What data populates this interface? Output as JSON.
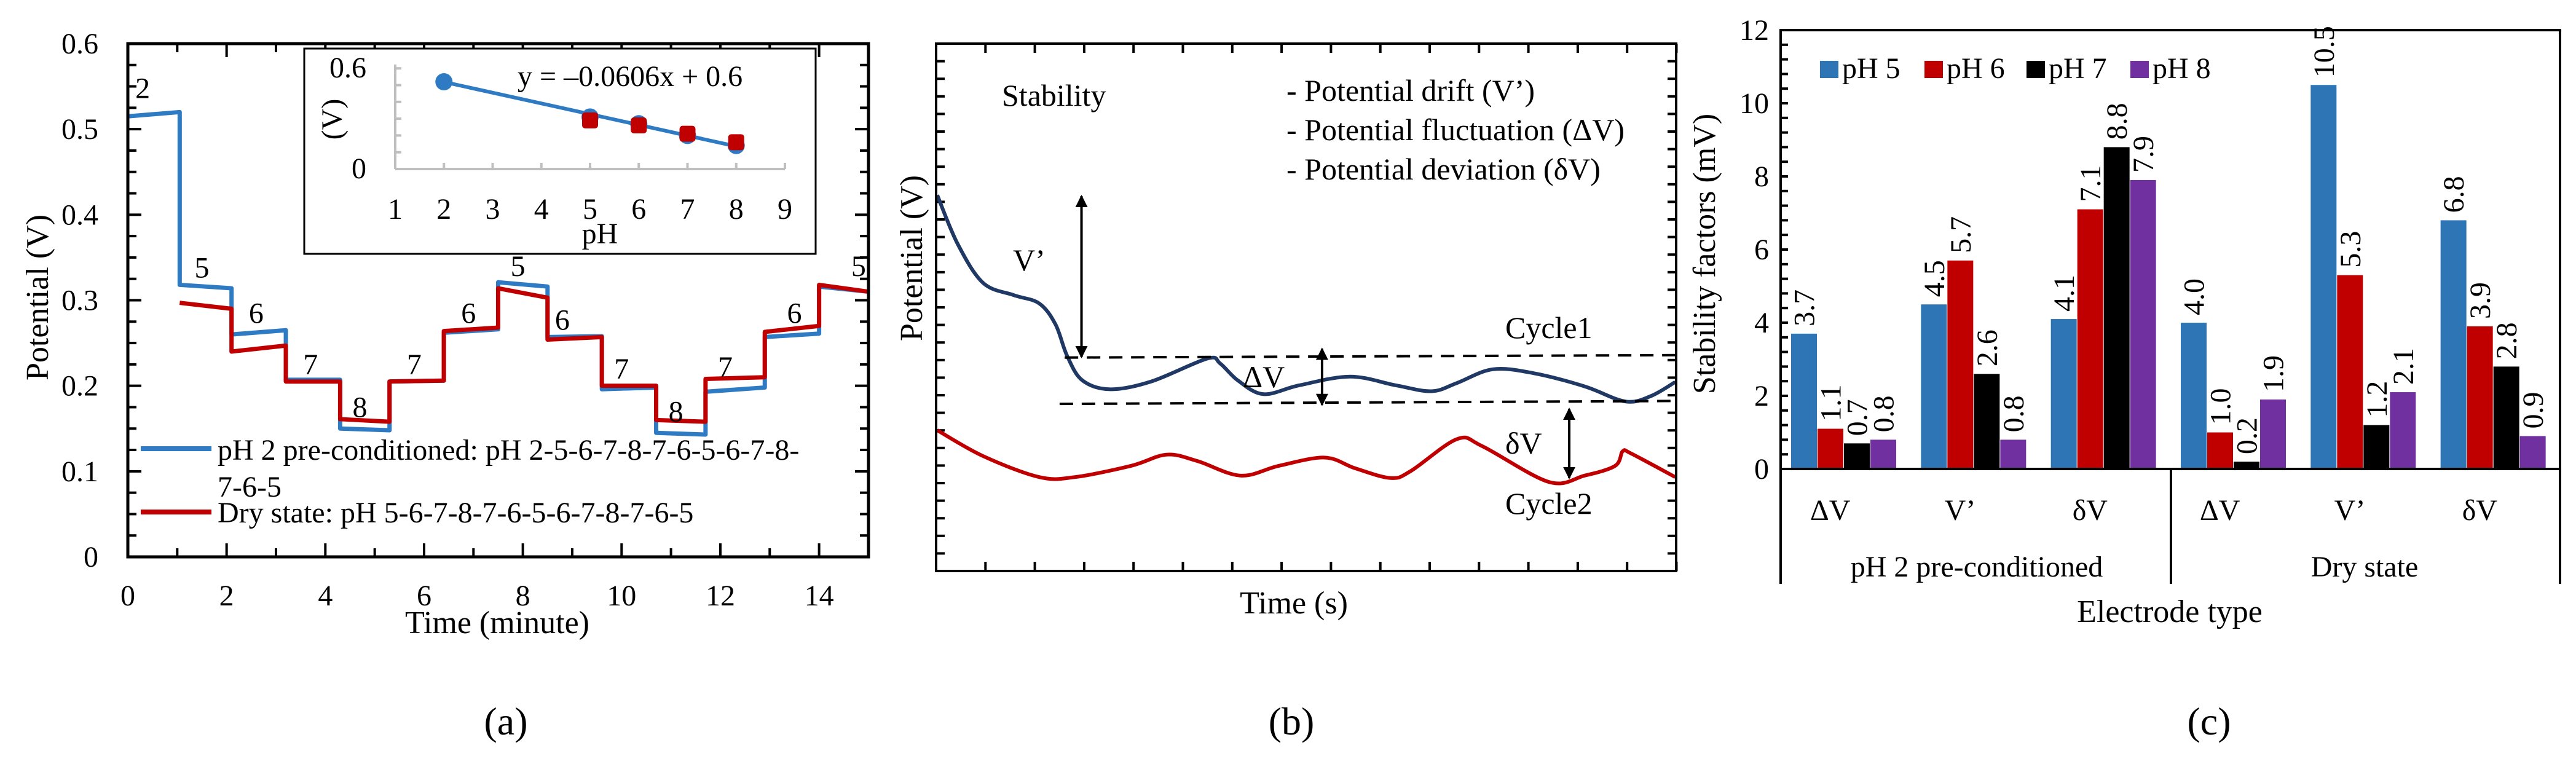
{
  "colors": {
    "blue_a": "#2E7BC4",
    "red": "#C00000",
    "navy": "#1F3864",
    "pH5": "#2E75B6",
    "pH6": "#C00000",
    "pH7": "#000000",
    "pH8": "#7030A0"
  },
  "panels": {
    "a": "(a)",
    "b": "(b)",
    "c": "(c)"
  },
  "chart_data": [
    {
      "type": "line",
      "panel": "a",
      "xlabel": "Time (minute)",
      "ylabel": "Potential (V)",
      "xlim": [
        0,
        15
      ],
      "ylim": [
        0,
        0.6
      ],
      "xticks": [
        "0",
        "2",
        "4",
        "6",
        "8",
        "10",
        "12",
        "14"
      ],
      "yticks": [
        "0",
        "0.1",
        "0.2",
        "0.3",
        "0.4",
        "0.5",
        "0.6"
      ],
      "legend": [
        "pH 2 pre-conditioned: pH 2-5-6-7-8-7-6-5-6-7-8-",
        "7-6-5",
        "Dry state: pH 5-6-7-8-7-6-5-6-7-8-7-6-5"
      ],
      "legend_placement": "bottom-left",
      "series": [
        {
          "name": "pH 2 pre-conditioned",
          "segments_t0_t1_v0_v1": [
            [
              0,
              1.05,
              0.515,
              0.52
            ],
            [
              1.05,
              2.1,
              0.318,
              0.314
            ],
            [
              2.1,
              3.2,
              0.26,
              0.265
            ],
            [
              3.2,
              4.3,
              0.207,
              0.207
            ],
            [
              4.3,
              5.3,
              0.15,
              0.148
            ],
            [
              5.3,
              6.4,
              0.205,
              0.206
            ],
            [
              6.4,
              7.5,
              0.262,
              0.266
            ],
            [
              7.5,
              8.5,
              0.321,
              0.316
            ],
            [
              8.5,
              9.6,
              0.257,
              0.258
            ],
            [
              9.6,
              10.7,
              0.196,
              0.198
            ],
            [
              10.7,
              11.7,
              0.145,
              0.143
            ],
            [
              11.7,
              12.9,
              0.193,
              0.198
            ],
            [
              12.9,
              14,
              0.257,
              0.261
            ],
            [
              14,
              15,
              0.316,
              0.31
            ]
          ]
        },
        {
          "name": "Dry state",
          "segments_t0_t1_v0_v1": [
            [
              1.05,
              2.1,
              0.297,
              0.29
            ],
            [
              2.1,
              3.2,
              0.24,
              0.247
            ],
            [
              3.2,
              4.3,
              0.205,
              0.205
            ],
            [
              4.3,
              5.3,
              0.161,
              0.158
            ],
            [
              5.3,
              6.4,
              0.205,
              0.206
            ],
            [
              6.4,
              7.5,
              0.264,
              0.268
            ],
            [
              7.5,
              8.5,
              0.314,
              0.303
            ],
            [
              8.5,
              9.6,
              0.254,
              0.257
            ],
            [
              9.6,
              10.7,
              0.2,
              0.2
            ],
            [
              10.7,
              11.7,
              0.16,
              0.158
            ],
            [
              11.7,
              12.9,
              0.208,
              0.21
            ],
            [
              12.9,
              14,
              0.263,
              0.27
            ],
            [
              14,
              15,
              0.318,
              0.31
            ]
          ]
        }
      ],
      "step_labels": [
        [
          0.3,
          0.548,
          "2"
        ],
        [
          1.5,
          0.338,
          "5"
        ],
        [
          2.6,
          0.285,
          "6"
        ],
        [
          3.7,
          0.225,
          "7"
        ],
        [
          4.7,
          0.175,
          "8"
        ],
        [
          5.8,
          0.225,
          "7"
        ],
        [
          6.9,
          0.285,
          "6"
        ],
        [
          7.9,
          0.34,
          "5"
        ],
        [
          8.8,
          0.277,
          "6"
        ],
        [
          10,
          0.22,
          "7"
        ],
        [
          11.1,
          0.17,
          "8"
        ],
        [
          12.1,
          0.222,
          "7"
        ],
        [
          13.5,
          0.285,
          "6"
        ],
        [
          14.8,
          0.34,
          "5"
        ]
      ],
      "inset": {
        "type": "scatter",
        "xlabel": "pH",
        "ylabel": "(V)",
        "xlim": [
          1,
          9
        ],
        "ylim": [
          0,
          0.6
        ],
        "xticks": [
          "1",
          "2",
          "3",
          "4",
          "5",
          "6",
          "7",
          "8",
          "9"
        ],
        "yticks": [
          "0",
          "0.6"
        ],
        "equation": "y = –0.0606x + 0.6",
        "series": [
          {
            "name": "pH 2 pre-conditioned",
            "x": [
              2,
              5,
              6,
              7,
              8
            ],
            "y": [
              0.52,
              0.31,
              0.27,
              0.2,
              0.14
            ]
          },
          {
            "name": "Dry state",
            "x": [
              5,
              6,
              7,
              8
            ],
            "y": [
              0.29,
              0.26,
              0.21,
              0.16
            ]
          }
        ],
        "fit": {
          "slope": -0.0606,
          "intercept": 0.6,
          "x": [
            2,
            8
          ]
        }
      }
    },
    {
      "type": "line",
      "panel": "b",
      "title": "Stability",
      "xlabel": "Time (s)",
      "ylabel": "Potential (V)",
      "notes": [
        "- Potential drift (V’)",
        "- Potential fluctuation (ΔV)",
        "- Potential deviation (δV)"
      ],
      "annotations": {
        "drift": "V’",
        "fluct": "ΔV",
        "dev": "δV",
        "cycle1": "Cycle1",
        "cycle2": "Cycle2"
      },
      "series": [
        {
          "name": "Cycle1"
        },
        {
          "name": "Cycle2"
        }
      ]
    },
    {
      "type": "bar",
      "panel": "c",
      "ylabel": "Stability factors (mV)",
      "xlabel": "Electrode type",
      "ylim": [
        0,
        12
      ],
      "yticks": [
        "0",
        "2",
        "4",
        "6",
        "8",
        "10",
        "12"
      ],
      "groups": [
        "pH 2 pre-conditioned",
        "Dry state"
      ],
      "categories": [
        "ΔV",
        "V’",
        "δV",
        "ΔV",
        "V’",
        "δV"
      ],
      "legend_placement": "top-left",
      "series": [
        {
          "name": "pH 5",
          "values": [
            3.7,
            4.5,
            4.1,
            4.0,
            10.5,
            6.8
          ],
          "labels": [
            "3.7",
            "4.5",
            "4.1",
            "4.0",
            "10.5",
            "6.8"
          ]
        },
        {
          "name": "pH 6",
          "values": [
            1.1,
            5.7,
            7.1,
            1.0,
            5.3,
            3.9
          ],
          "labels": [
            "1.1",
            "5.7",
            "7.1",
            "1.0",
            "5.3",
            "3.9"
          ]
        },
        {
          "name": "pH 7",
          "values": [
            0.7,
            2.6,
            8.8,
            0.2,
            1.2,
            2.8
          ],
          "labels": [
            "0.7",
            "2.6",
            "8.8",
            "0.2",
            "1.2",
            "2.8"
          ]
        },
        {
          "name": "pH 8",
          "values": [
            0.8,
            0.8,
            7.9,
            1.9,
            2.1,
            0.9
          ],
          "labels": [
            "0.8",
            "0.8",
            "7.9",
            "1.9",
            "2.1",
            "0.9"
          ]
        }
      ]
    }
  ]
}
